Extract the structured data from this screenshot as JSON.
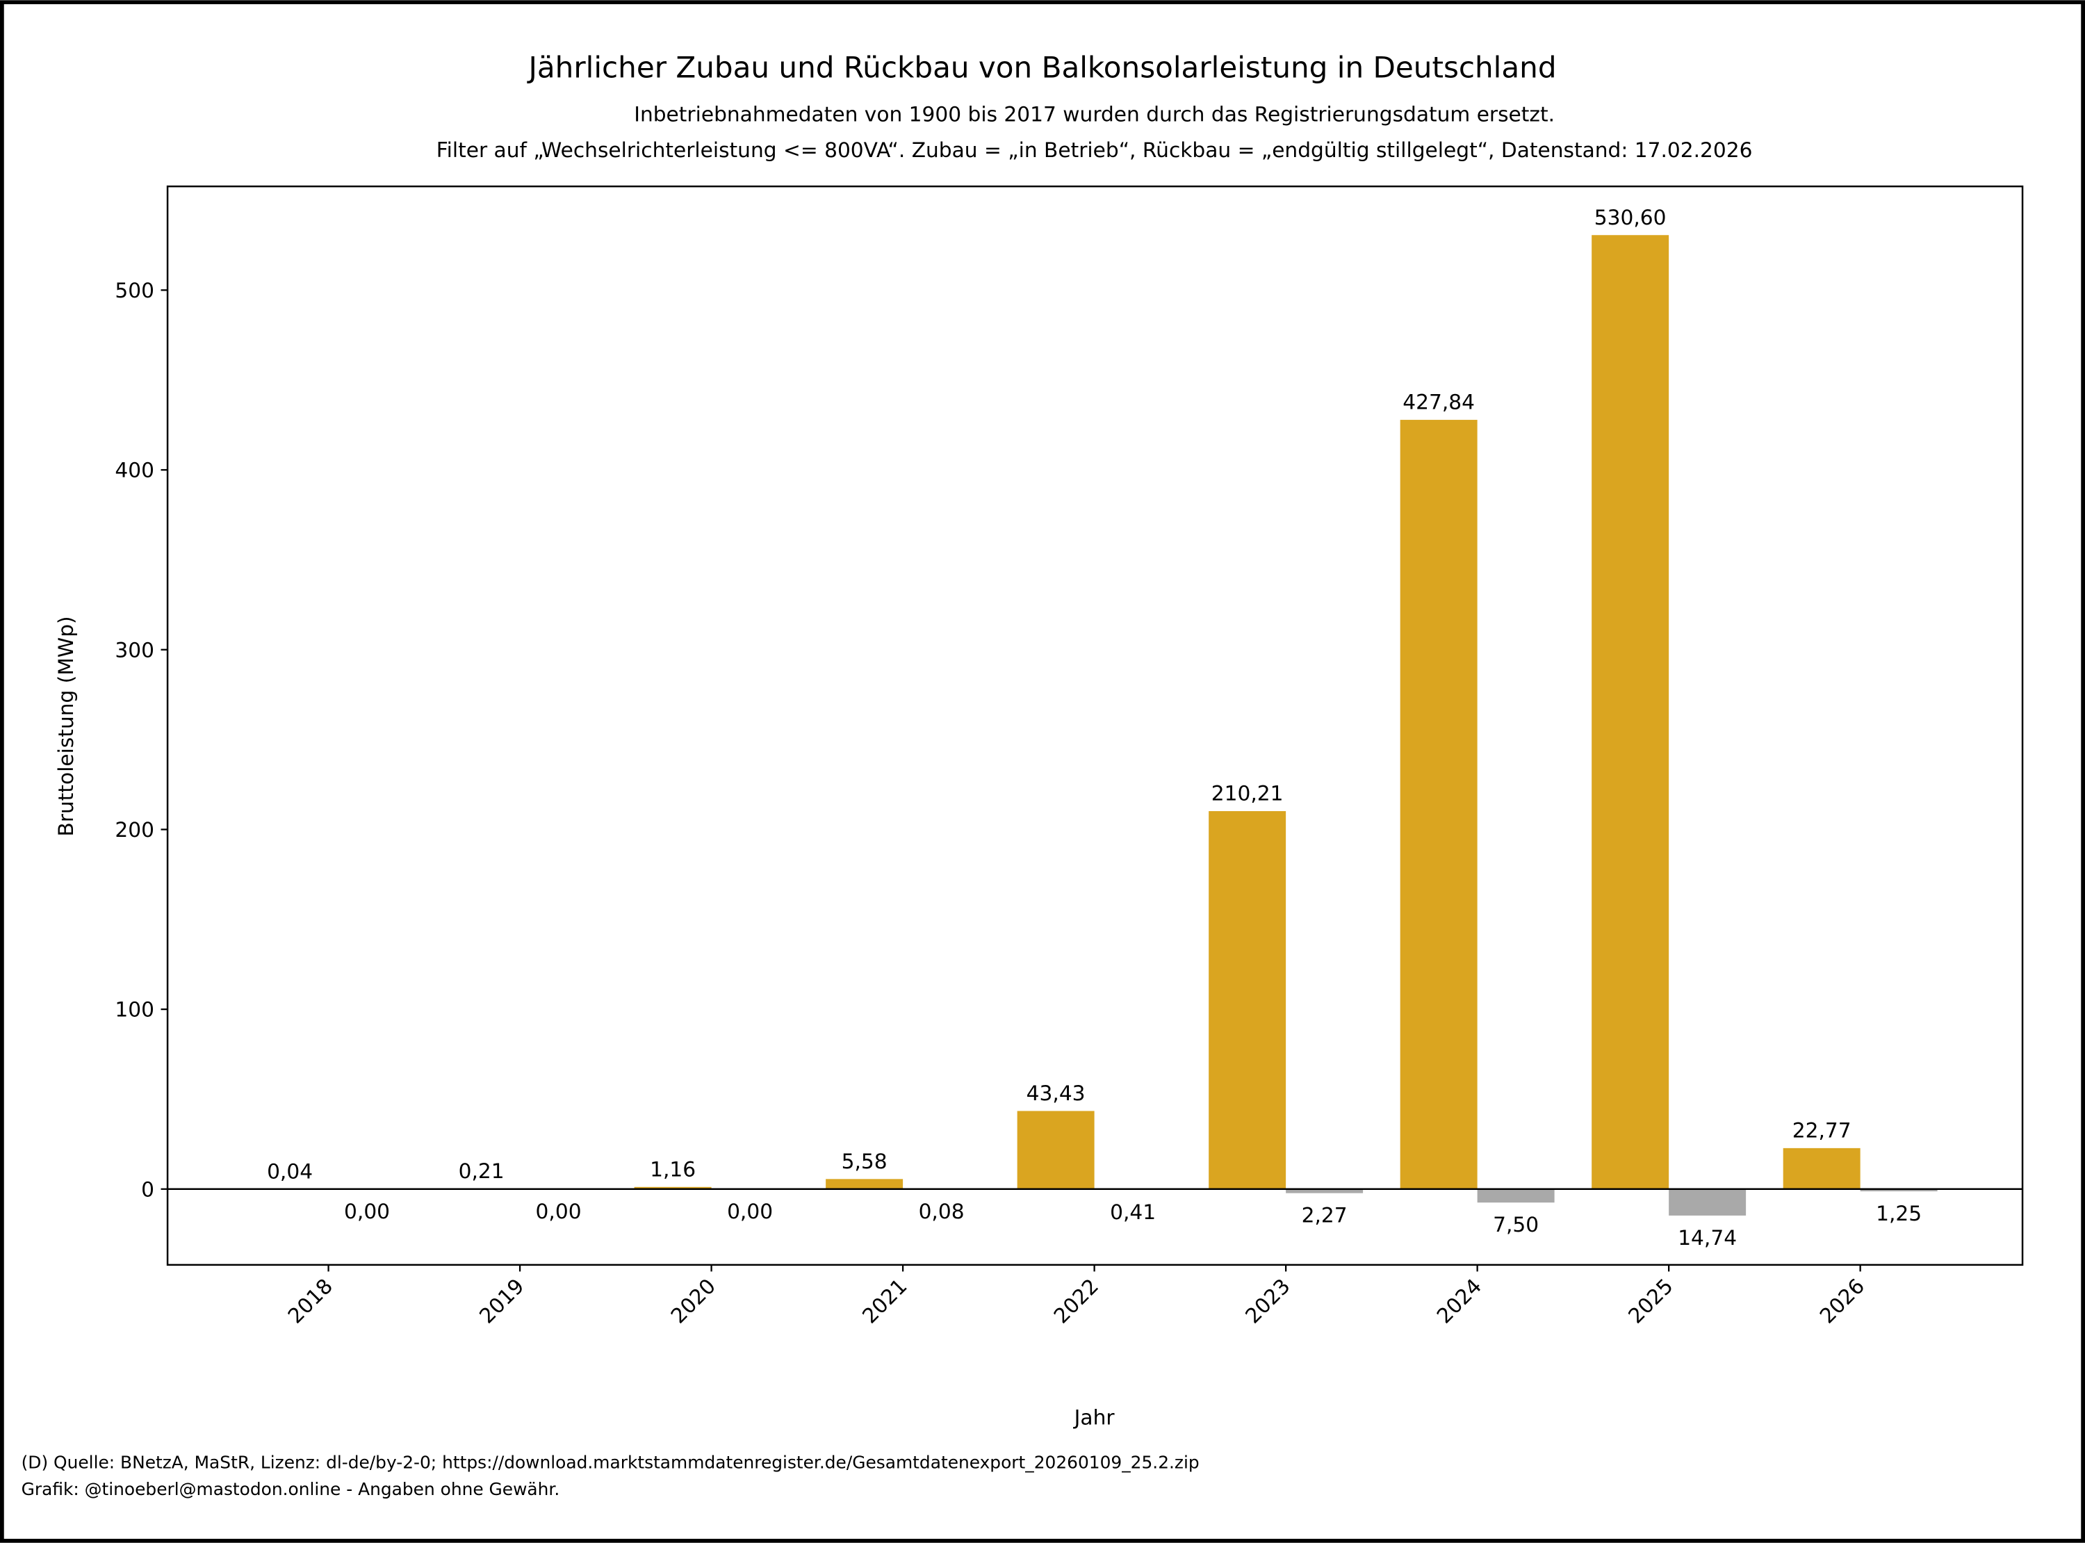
{
  "chart_data": {
    "type": "bar",
    "title": "Jährlicher Zubau und Rückbau von Balkonsolarleistung in Deutschland",
    "subtitle_lines": [
      "Inbetriebnahmedaten von 1900 bis 2017 wurden durch das Registrierungsdatum ersetzt.",
      "Filter auf „Wechselrichterleistung <= 800VA“. Zubau = „in Betrieb“, Rückbau = „endgültig stillgelegt“, Datenstand: 17.02.2026"
    ],
    "xlabel": "Jahr",
    "ylabel": "Bruttoleistung (MWp)",
    "categories": [
      "2018",
      "2019",
      "2020",
      "2021",
      "2022",
      "2023",
      "2024",
      "2025",
      "2026"
    ],
    "series": [
      {
        "name": "Zubau",
        "color": "#DAA520",
        "values": [
          0.04,
          0.21,
          1.16,
          5.58,
          43.43,
          210.21,
          427.84,
          530.6,
          22.77
        ],
        "labels": [
          "0,04",
          "0,21",
          "1,16",
          "5,58",
          "43,43",
          "210,21",
          "427,84",
          "530,60",
          "22,77"
        ]
      },
      {
        "name": "Rückbau",
        "color": "#A9A9A9",
        "values": [
          0.0,
          0.0,
          0.0,
          -0.08,
          -0.41,
          -2.27,
          -7.5,
          -14.74,
          -1.25
        ],
        "labels": [
          "0,00",
          "0,00",
          "0,00",
          "0,08",
          "0,41",
          "2,27",
          "7,50",
          "14,74",
          "1,25"
        ]
      }
    ],
    "yticks": [
      0,
      100,
      200,
      300,
      400,
      500
    ],
    "ylim": [
      -42,
      558
    ],
    "grid": false
  },
  "footer": {
    "line1": "(D) Quelle: BNetzA, MaStR, Lizenz: dl-de/by-2-0; https://download.marktstammdatenregister.de/Gesamtdatenexport_20260109_25.2.zip",
    "line2": "Grafik: @tinoeberl@mastodon.online - Angaben ohne Gewähr."
  }
}
